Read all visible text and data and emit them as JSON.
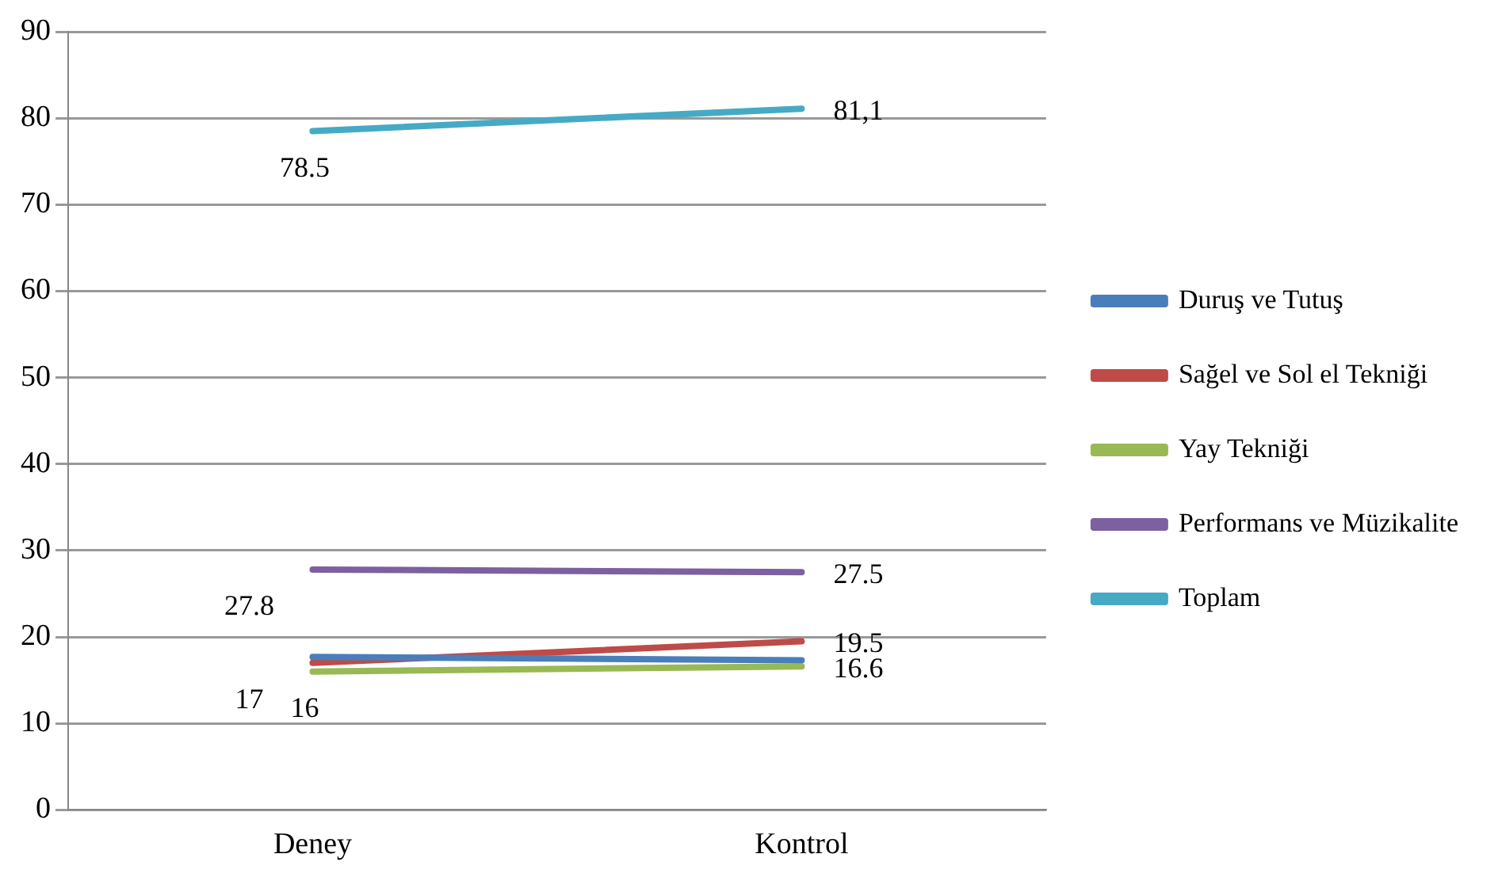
{
  "chart_data": {
    "type": "line",
    "categories": [
      "Deney",
      "Kontrol"
    ],
    "series": [
      {
        "name": "Duruş ve Tutuş",
        "color": "#4a7ebb",
        "values": [
          17.7,
          17.3
        ]
      },
      {
        "name": "Sağel ve Sol el Tekniği",
        "color": "#be4b48",
        "values": [
          17,
          19.5
        ],
        "value_labels": [
          "17",
          "19.5"
        ]
      },
      {
        "name": "Yay Tekniği",
        "color": "#98b954",
        "values": [
          16,
          16.6
        ],
        "value_labels": [
          "16",
          "16.6"
        ]
      },
      {
        "name": "Performans ve Müzikalite",
        "color": "#7d60a0",
        "values": [
          27.8,
          27.5
        ],
        "value_labels": [
          "27.8",
          "27.5"
        ]
      },
      {
        "name": "Toplam",
        "color": "#46aac5",
        "values": [
          78.5,
          81.1
        ],
        "value_labels": [
          "78.5",
          "81,1"
        ]
      }
    ],
    "ylim": [
      0,
      90
    ],
    "yticks": [
      0,
      10,
      20,
      30,
      40,
      50,
      60,
      70,
      80,
      90
    ],
    "grid": "y",
    "legend": "right",
    "marker": "none",
    "line_style": "solid"
  }
}
